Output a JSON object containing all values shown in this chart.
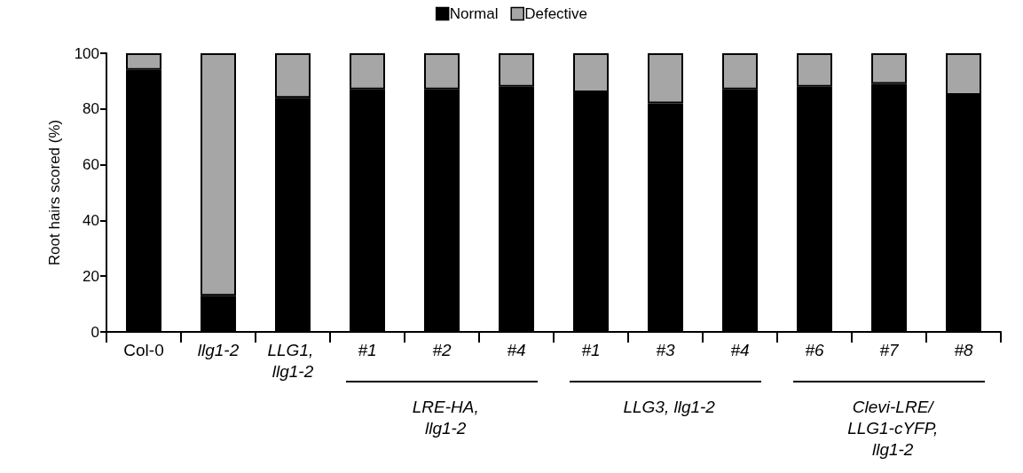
{
  "chart_data": {
    "type": "bar",
    "stacked": true,
    "ylabel": "Root hairs scored (%)",
    "categories": [
      "Col-0",
      "llg1-2",
      "LLG1, llg1-2",
      "#1",
      "#2",
      "#4",
      "#1",
      "#3",
      "#4",
      "#6",
      "#7",
      "#8"
    ],
    "series": [
      {
        "name": "Normal",
        "color": "#000000",
        "values": [
          94,
          13,
          84,
          87,
          87,
          88,
          86,
          82,
          87,
          88,
          89,
          85
        ]
      },
      {
        "name": "Defective",
        "color": "#a6a6a6",
        "values": [
          6,
          87,
          16,
          13,
          13,
          12,
          14,
          18,
          13,
          12,
          11,
          15
        ]
      }
    ],
    "ylim": [
      0,
      100
    ],
    "yticks": [
      0,
      20,
      40,
      60,
      80,
      100
    ],
    "grid": false,
    "legend": "top",
    "annotations": [
      "LRE-HA, llg1-2",
      "LLG3, llg1-2",
      "Clevi-LRE/ LLG1-cYFP, llg1-2"
    ]
  }
}
